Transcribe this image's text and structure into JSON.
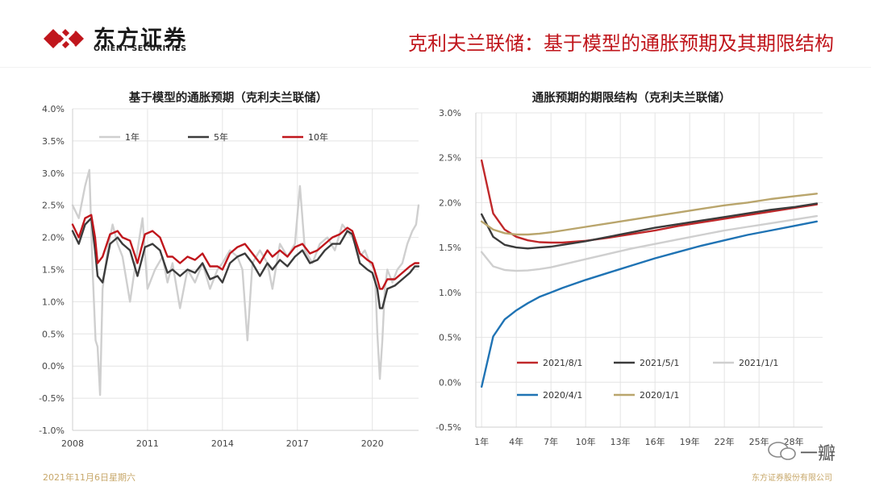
{
  "header": {
    "logo_cn": "东方证券",
    "logo_en": "ORIENT SECURITIES",
    "title": "克利夫兰联储：基于模型的通胀预期及其期限结构"
  },
  "footer": {
    "date": "2021年11月6日星期六",
    "company": "东方证券股份有限公司"
  },
  "watermark": {
    "text": "一瓣"
  },
  "colors": {
    "brand_red": "#c0161c",
    "footer_gold": "#c7a769",
    "s1y": "#cfcfcf",
    "s5y": "#3b3b3b",
    "s10y": "#c0161c",
    "s_2021_8": "#c0282a",
    "s_2021_5": "#3b3b3b",
    "s_2021_1": "#cfcfcf",
    "s_2020_4": "#1f73b4",
    "s_2020_1": "#b9a56c"
  },
  "chart_data": [
    {
      "type": "line",
      "title": "基于模型的通胀预期（克利夫兰联储）",
      "yticks": [
        "4.0%",
        "3.5%",
        "3.0%",
        "2.5%",
        "2.0%",
        "1.5%",
        "1.0%",
        "0.5%",
        "0.0%",
        "-0.5%",
        "-1.0%"
      ],
      "xticks": [
        "2008",
        "2011",
        "2014",
        "2017",
        "2020"
      ],
      "ylim": [
        -1.0,
        4.0
      ],
      "xlim": [
        2008.0,
        2021.85
      ],
      "legend_position": "top",
      "series": [
        {
          "name": "1年",
          "color": "#cfcfcf",
          "x": [
            2008.0,
            2008.25,
            2008.5,
            2008.67,
            2008.8,
            2008.92,
            2009.0,
            2009.1,
            2009.2,
            2009.4,
            2009.6,
            2009.8,
            2010.0,
            2010.3,
            2010.6,
            2010.8,
            2011.0,
            2011.3,
            2011.6,
            2011.8,
            2012.0,
            2012.3,
            2012.6,
            2012.9,
            2013.2,
            2013.5,
            2013.8,
            2014.0,
            2014.3,
            2014.6,
            2014.8,
            2015.0,
            2015.2,
            2015.5,
            2015.8,
            2016.0,
            2016.3,
            2016.6,
            2016.9,
            2017.1,
            2017.3,
            2017.6,
            2017.9,
            2018.2,
            2018.5,
            2018.8,
            2019.0,
            2019.2,
            2019.5,
            2019.7,
            2019.9,
            2020.1,
            2020.2,
            2020.3,
            2020.4,
            2020.5,
            2020.6,
            2020.8,
            2021.0,
            2021.2,
            2021.4,
            2021.6,
            2021.75,
            2021.85
          ],
          "y": [
            2.5,
            2.3,
            2.8,
            3.05,
            1.5,
            0.4,
            0.3,
            -0.45,
            1.2,
            1.8,
            2.2,
            1.9,
            1.7,
            1.0,
            1.8,
            2.3,
            1.2,
            1.5,
            1.7,
            1.3,
            1.6,
            0.9,
            1.5,
            1.3,
            1.6,
            1.2,
            1.5,
            1.6,
            1.8,
            1.7,
            1.5,
            0.4,
            1.6,
            1.8,
            1.6,
            1.2,
            1.9,
            1.7,
            1.9,
            2.8,
            1.8,
            1.6,
            1.9,
            2.0,
            1.8,
            2.2,
            2.1,
            2.0,
            1.7,
            1.8,
            1.6,
            1.5,
            0.5,
            -0.2,
            0.4,
            1.2,
            1.5,
            1.3,
            1.5,
            1.6,
            1.9,
            2.1,
            2.2,
            2.5
          ]
        },
        {
          "name": "5年",
          "color": "#3b3b3b",
          "x": [
            2008.0,
            2008.25,
            2008.5,
            2008.75,
            2008.9,
            2009.0,
            2009.2,
            2009.5,
            2009.8,
            2010.0,
            2010.3,
            2010.6,
            2010.9,
            2011.2,
            2011.5,
            2011.8,
            2012.0,
            2012.3,
            2012.6,
            2012.9,
            2013.2,
            2013.5,
            2013.8,
            2014.0,
            2014.3,
            2014.6,
            2014.9,
            2015.2,
            2015.5,
            2015.8,
            2016.0,
            2016.3,
            2016.6,
            2016.9,
            2017.2,
            2017.5,
            2017.8,
            2018.1,
            2018.4,
            2018.7,
            2019.0,
            2019.2,
            2019.5,
            2019.8,
            2020.0,
            2020.2,
            2020.3,
            2020.4,
            2020.6,
            2020.9,
            2021.2,
            2021.5,
            2021.7,
            2021.85
          ],
          "y": [
            2.1,
            1.9,
            2.2,
            2.3,
            1.8,
            1.4,
            1.3,
            1.9,
            2.0,
            1.9,
            1.8,
            1.4,
            1.85,
            1.9,
            1.8,
            1.45,
            1.5,
            1.4,
            1.5,
            1.45,
            1.6,
            1.35,
            1.4,
            1.3,
            1.6,
            1.7,
            1.75,
            1.6,
            1.4,
            1.6,
            1.5,
            1.65,
            1.55,
            1.7,
            1.8,
            1.6,
            1.65,
            1.8,
            1.9,
            1.9,
            2.1,
            2.05,
            1.6,
            1.5,
            1.45,
            1.2,
            0.9,
            0.9,
            1.2,
            1.25,
            1.35,
            1.45,
            1.55,
            1.55
          ]
        },
        {
          "name": "10年",
          "color": "#c0161c",
          "x": [
            2008.0,
            2008.25,
            2008.5,
            2008.75,
            2008.9,
            2009.0,
            2009.2,
            2009.5,
            2009.8,
            2010.0,
            2010.3,
            2010.6,
            2010.9,
            2011.2,
            2011.5,
            2011.8,
            2012.0,
            2012.3,
            2012.6,
            2012.9,
            2013.2,
            2013.5,
            2013.8,
            2014.0,
            2014.3,
            2014.6,
            2014.9,
            2015.2,
            2015.5,
            2015.8,
            2016.0,
            2016.3,
            2016.6,
            2016.9,
            2017.2,
            2017.5,
            2017.8,
            2018.1,
            2018.4,
            2018.7,
            2019.0,
            2019.2,
            2019.5,
            2019.8,
            2020.0,
            2020.2,
            2020.3,
            2020.4,
            2020.6,
            2020.9,
            2021.2,
            2021.5,
            2021.7,
            2021.85
          ],
          "y": [
            2.2,
            2.0,
            2.3,
            2.35,
            2.0,
            1.6,
            1.7,
            2.05,
            2.1,
            2.0,
            1.95,
            1.6,
            2.05,
            2.1,
            2.0,
            1.7,
            1.7,
            1.6,
            1.7,
            1.65,
            1.75,
            1.55,
            1.55,
            1.5,
            1.75,
            1.85,
            1.9,
            1.75,
            1.6,
            1.8,
            1.7,
            1.8,
            1.7,
            1.85,
            1.9,
            1.75,
            1.8,
            1.9,
            2.0,
            2.05,
            2.15,
            2.1,
            1.75,
            1.65,
            1.6,
            1.35,
            1.2,
            1.2,
            1.35,
            1.35,
            1.45,
            1.55,
            1.6,
            1.6
          ]
        }
      ]
    },
    {
      "type": "line",
      "title": "通胀预期的期限结构（克利夫兰联储）",
      "yticks": [
        "3.0%",
        "2.5%",
        "2.0%",
        "1.5%",
        "1.0%",
        "0.5%",
        "0.0%",
        "-0.5%"
      ],
      "xticks": [
        "1年",
        "4年",
        "7年",
        "10年",
        "13年",
        "16年",
        "19年",
        "22年",
        "25年",
        "28年"
      ],
      "ylim": [
        -0.5,
        3.0
      ],
      "xlim": [
        0.5,
        30.5
      ],
      "legend_position": "bottom",
      "series": [
        {
          "name": "2021/8/1",
          "color": "#c0282a",
          "x": [
            1,
            2,
            3,
            4,
            5,
            6,
            7,
            8,
            10,
            12,
            14,
            16,
            18,
            20,
            22,
            24,
            26,
            28,
            30
          ],
          "y": [
            2.47,
            1.88,
            1.7,
            1.62,
            1.58,
            1.56,
            1.555,
            1.555,
            1.575,
            1.61,
            1.65,
            1.69,
            1.74,
            1.78,
            1.82,
            1.86,
            1.9,
            1.94,
            1.98
          ]
        },
        {
          "name": "2021/5/1",
          "color": "#3b3b3b",
          "x": [
            1,
            2,
            3,
            4,
            5,
            6,
            7,
            8,
            10,
            12,
            14,
            16,
            18,
            20,
            22,
            24,
            26,
            28,
            30
          ],
          "y": [
            1.87,
            1.62,
            1.53,
            1.5,
            1.49,
            1.5,
            1.51,
            1.53,
            1.57,
            1.62,
            1.67,
            1.72,
            1.76,
            1.8,
            1.84,
            1.88,
            1.92,
            1.95,
            1.99
          ]
        },
        {
          "name": "2021/1/1",
          "color": "#cfcfcf",
          "x": [
            1,
            2,
            3,
            4,
            5,
            6,
            7,
            8,
            10,
            12,
            14,
            16,
            18,
            20,
            22,
            24,
            26,
            28,
            30
          ],
          "y": [
            1.45,
            1.29,
            1.25,
            1.24,
            1.245,
            1.26,
            1.28,
            1.31,
            1.37,
            1.43,
            1.49,
            1.54,
            1.59,
            1.64,
            1.69,
            1.73,
            1.77,
            1.81,
            1.85
          ]
        },
        {
          "name": "2020/4/1",
          "color": "#1f73b4",
          "x": [
            1,
            2,
            3,
            4,
            5,
            6,
            7,
            8,
            10,
            12,
            14,
            16,
            18,
            20,
            22,
            24,
            26,
            28,
            30
          ],
          "y": [
            -0.05,
            0.51,
            0.7,
            0.8,
            0.88,
            0.95,
            1.0,
            1.05,
            1.14,
            1.22,
            1.3,
            1.38,
            1.45,
            1.52,
            1.58,
            1.64,
            1.69,
            1.74,
            1.79
          ]
        },
        {
          "name": "2020/1/1",
          "color": "#b9a56c",
          "x": [
            1,
            2,
            3,
            4,
            5,
            6,
            7,
            8,
            10,
            12,
            14,
            16,
            18,
            20,
            22,
            24,
            26,
            28,
            30
          ],
          "y": [
            1.79,
            1.7,
            1.66,
            1.645,
            1.645,
            1.655,
            1.67,
            1.69,
            1.73,
            1.77,
            1.81,
            1.85,
            1.89,
            1.93,
            1.97,
            2.0,
            2.04,
            2.07,
            2.1
          ]
        }
      ]
    }
  ]
}
